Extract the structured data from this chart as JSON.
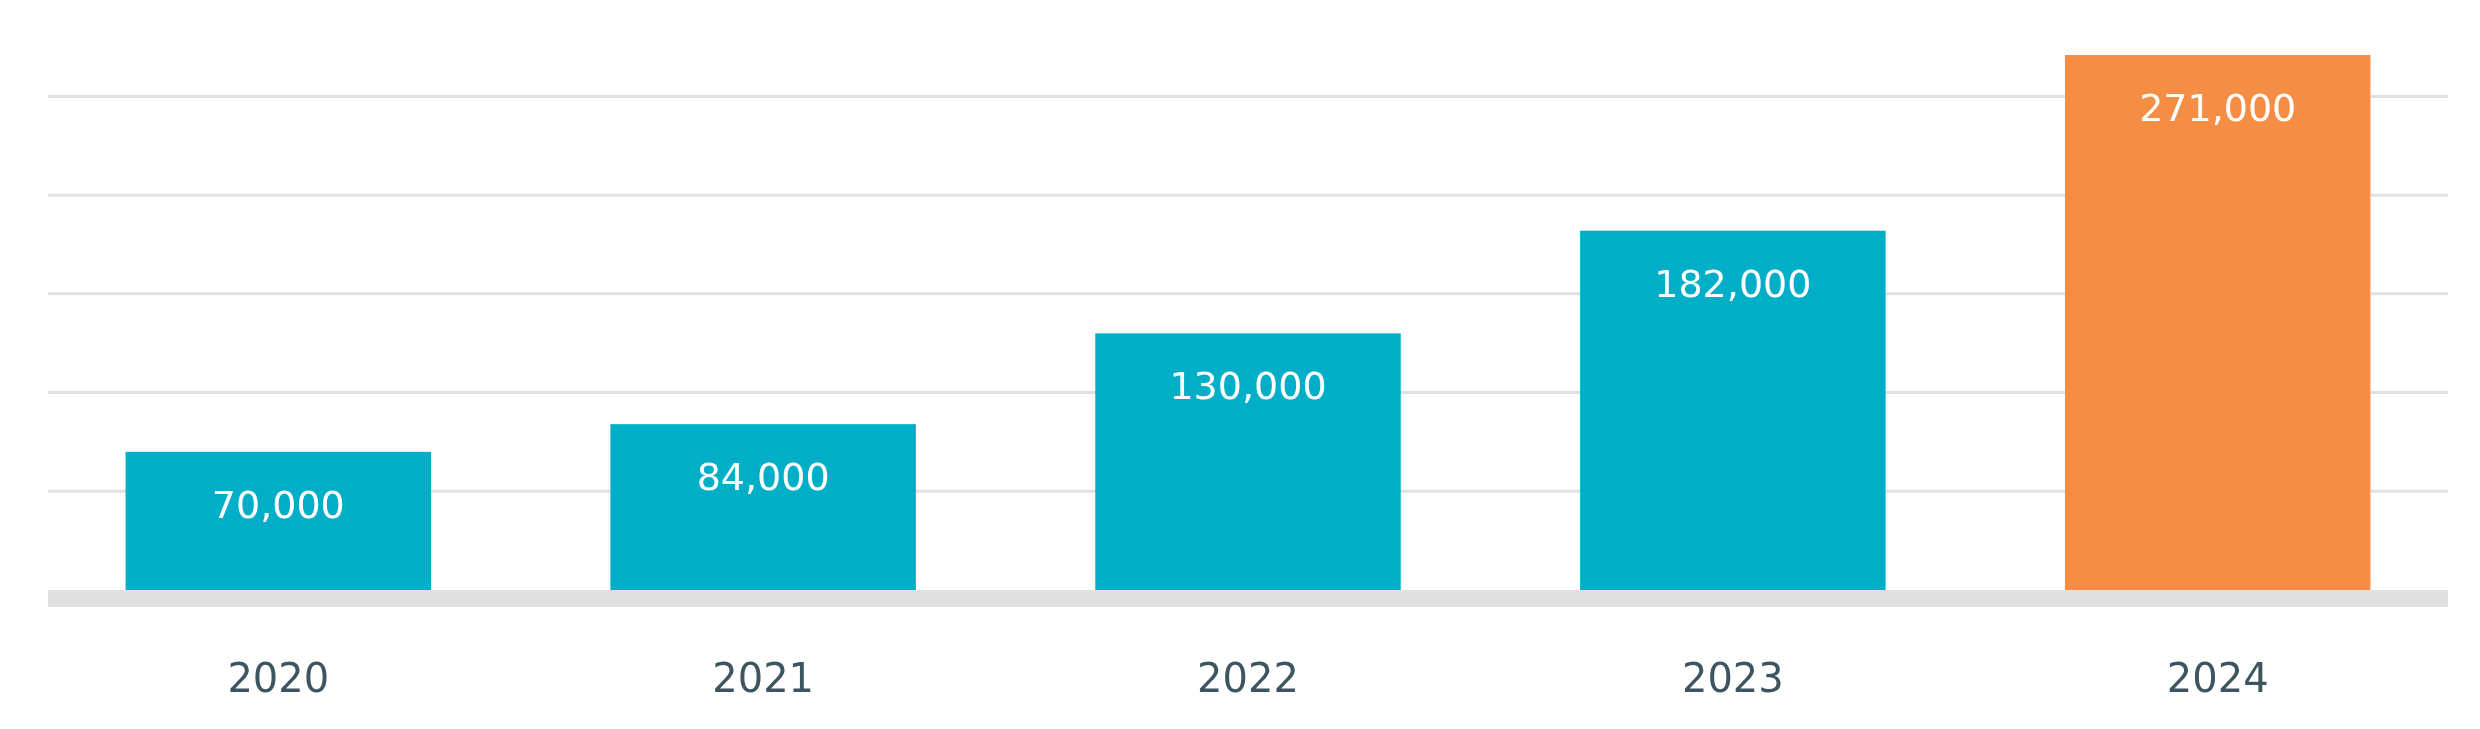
{
  "chart_data": {
    "type": "bar",
    "categories": [
      "2020",
      "2021",
      "2022",
      "2023",
      "2024"
    ],
    "values": [
      70000,
      84000,
      130000,
      182000,
      271000
    ],
    "value_labels": [
      "70,000",
      "84,000",
      "130,000",
      "182,000",
      "271,000"
    ],
    "colors": [
      "#00aec7",
      "#00aec7",
      "#00aec7",
      "#00aec7",
      "#f68d45"
    ],
    "tick_labels": "x",
    "grid": "y"
  }
}
